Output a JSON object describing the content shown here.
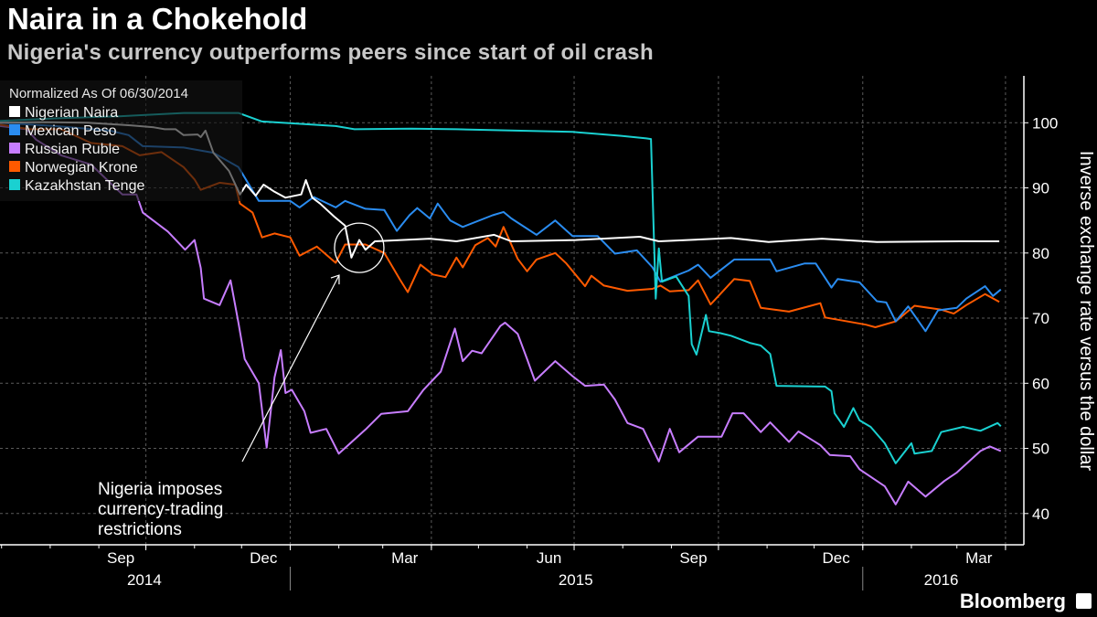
{
  "header": {
    "title": "Naira in a Chokehold",
    "subtitle": "Nigeria's currency outperforms peers since start of oil crash"
  },
  "logo": "Bloomberg",
  "chart_data": {
    "type": "line",
    "title": "Naira in a Chokehold",
    "subtitle": "Nigeria's currency outperforms peers since start of oil crash",
    "ylabel": "Inverse exchange rate versus the dollar",
    "xlabel": "",
    "x_unit": "days since 2014-06-30",
    "start_date": "2014-06-30",
    "ylim": [
      35.2,
      107.2
    ],
    "xlim": [
      0,
      652
    ],
    "yticks": [
      40,
      50,
      60,
      70,
      80,
      90,
      100
    ],
    "grid": true,
    "legend_title": "Normalized As Of 06/30/2014",
    "legend_position": "top-left",
    "month_ticks": [
      {
        "label": "Sep",
        "day": 77
      },
      {
        "label": "Dec",
        "day": 168
      },
      {
        "label": "Mar",
        "day": 258
      },
      {
        "label": "Jun",
        "day": 350
      },
      {
        "label": "Sep",
        "day": 442
      },
      {
        "label": "Dec",
        "day": 533
      },
      {
        "label": "Mar",
        "day": 624
      }
    ],
    "quarter_gridlines_days": [
      93,
      185,
      275,
      366,
      458,
      550,
      641
    ],
    "year_labels": [
      {
        "label": "2014",
        "day": 92
      },
      {
        "label": "2015",
        "day": 367
      },
      {
        "label": "2016",
        "day": 600
      }
    ],
    "year_separators_days": [
      185,
      550
    ],
    "annotation": {
      "text": [
        "Nigeria imposes",
        "currency-trading",
        "restrictions"
      ],
      "day": 229,
      "value": 80.8
    },
    "series": [
      {
        "name": "Nigerian Naira",
        "color": "#ffffff",
        "points": [
          [
            0,
            100
          ],
          [
            28,
            100.1
          ],
          [
            56,
            100
          ],
          [
            84,
            99.6
          ],
          [
            98,
            99.3
          ],
          [
            105,
            99
          ],
          [
            112,
            99
          ],
          [
            117,
            98.1
          ],
          [
            126,
            98.2
          ],
          [
            128,
            97.8
          ],
          [
            131,
            98.8
          ],
          [
            136,
            95.4
          ],
          [
            146,
            92.6
          ],
          [
            153,
            89
          ],
          [
            157,
            90.5
          ],
          [
            163,
            88.8
          ],
          [
            168,
            90.5
          ],
          [
            175,
            89.4
          ],
          [
            182,
            88.5
          ],
          [
            192,
            89
          ],
          [
            195,
            91.2
          ],
          [
            199,
            88.5
          ],
          [
            204,
            87.6
          ],
          [
            213,
            85.6
          ],
          [
            220,
            84.2
          ],
          [
            224,
            79.3
          ],
          [
            229,
            82
          ],
          [
            233,
            80.5
          ],
          [
            239,
            81.8
          ],
          [
            274,
            82.2
          ],
          [
            291,
            81.8
          ],
          [
            315,
            82.8
          ],
          [
            326,
            81.8
          ],
          [
            367,
            82
          ],
          [
            408,
            82.5
          ],
          [
            420,
            81.8
          ],
          [
            466,
            82.3
          ],
          [
            490,
            81.7
          ],
          [
            524,
            82.2
          ],
          [
            559,
            81.7
          ],
          [
            612,
            81.8
          ],
          [
            637,
            81.8
          ]
        ]
      },
      {
        "name": "Mexican Peso",
        "color": "#2a8cf0",
        "points": [
          [
            0,
            100
          ],
          [
            35,
            99.5
          ],
          [
            70,
            98.8
          ],
          [
            82,
            98.1
          ],
          [
            91,
            96.4
          ],
          [
            117,
            96.2
          ],
          [
            136,
            95.4
          ],
          [
            152,
            93.2
          ],
          [
            165,
            88
          ],
          [
            185,
            88
          ],
          [
            191,
            87
          ],
          [
            200,
            88.6
          ],
          [
            214,
            87
          ],
          [
            220,
            88
          ],
          [
            233,
            86.8
          ],
          [
            245,
            86.6
          ],
          [
            253,
            83.4
          ],
          [
            261,
            85.8
          ],
          [
            266,
            86.9
          ],
          [
            274,
            85.3
          ],
          [
            279,
            87.6
          ],
          [
            287,
            85
          ],
          [
            295,
            84
          ],
          [
            314,
            85.8
          ],
          [
            321,
            86.3
          ],
          [
            326,
            85.3
          ],
          [
            342,
            82.8
          ],
          [
            354,
            85
          ],
          [
            365,
            82.6
          ],
          [
            381,
            82.6
          ],
          [
            392,
            79.9
          ],
          [
            406,
            80.4
          ],
          [
            416,
            77.8
          ],
          [
            421,
            75.6
          ],
          [
            439,
            77.3
          ],
          [
            445,
            78.2
          ],
          [
            453,
            76.2
          ],
          [
            468,
            79
          ],
          [
            491,
            79
          ],
          [
            495,
            77.2
          ],
          [
            513,
            78.4
          ],
          [
            520,
            78.4
          ],
          [
            530,
            74.7
          ],
          [
            534,
            76
          ],
          [
            548,
            75.5
          ],
          [
            559,
            72.6
          ],
          [
            565,
            72.4
          ],
          [
            571,
            69.5
          ],
          [
            579,
            71.8
          ],
          [
            590,
            68
          ],
          [
            598,
            71.2
          ],
          [
            610,
            71.6
          ],
          [
            616,
            73
          ],
          [
            628,
            74.9
          ],
          [
            633,
            73.4
          ],
          [
            638,
            74.4
          ]
        ]
      },
      {
        "name": "Russian Ruble",
        "color": "#c77dff",
        "points": [
          [
            0,
            99.5
          ],
          [
            17,
            99
          ],
          [
            23,
            97.4
          ],
          [
            39,
            95
          ],
          [
            58,
            93.6
          ],
          [
            78,
            89
          ],
          [
            87,
            89
          ],
          [
            91,
            86.2
          ],
          [
            107,
            83.3
          ],
          [
            118,
            80.5
          ],
          [
            124,
            82
          ],
          [
            128,
            77.7
          ],
          [
            130,
            73
          ],
          [
            140,
            72
          ],
          [
            147,
            75.8
          ],
          [
            152,
            69.3
          ],
          [
            156,
            63.7
          ],
          [
            165,
            60
          ],
          [
            170,
            50.1
          ],
          [
            175,
            60.9
          ],
          [
            179,
            65.1
          ],
          [
            182,
            58.5
          ],
          [
            186,
            59
          ],
          [
            194,
            55.7
          ],
          [
            198,
            52.4
          ],
          [
            208,
            53
          ],
          [
            216,
            49.2
          ],
          [
            233,
            52.9
          ],
          [
            243,
            55.3
          ],
          [
            260,
            55.7
          ],
          [
            270,
            59
          ],
          [
            281,
            61.8
          ],
          [
            290,
            68.4
          ],
          [
            295,
            63.4
          ],
          [
            301,
            65
          ],
          [
            307,
            64.6
          ],
          [
            319,
            68.8
          ],
          [
            322,
            69.3
          ],
          [
            330,
            67.6
          ],
          [
            336,
            63.7
          ],
          [
            341,
            60.4
          ],
          [
            354,
            63.4
          ],
          [
            365,
            61.1
          ],
          [
            373,
            59.6
          ],
          [
            385,
            59.8
          ],
          [
            392,
            57.5
          ],
          [
            400,
            53.9
          ],
          [
            410,
            53
          ],
          [
            420,
            48
          ],
          [
            427,
            53
          ],
          [
            433,
            49.4
          ],
          [
            445,
            51.8
          ],
          [
            460,
            51.8
          ],
          [
            467,
            55.4
          ],
          [
            474,
            55.4
          ],
          [
            485,
            52.5
          ],
          [
            491,
            54
          ],
          [
            503,
            51
          ],
          [
            509,
            52.6
          ],
          [
            523,
            50.5
          ],
          [
            529,
            49
          ],
          [
            542,
            48.8
          ],
          [
            548,
            46.8
          ],
          [
            564,
            44.2
          ],
          [
            571,
            41.4
          ],
          [
            579,
            44.9
          ],
          [
            590,
            42.6
          ],
          [
            602,
            45
          ],
          [
            610,
            46.3
          ],
          [
            625,
            49.6
          ],
          [
            631,
            50.3
          ],
          [
            638,
            49.6
          ]
        ]
      },
      {
        "name": "Norwegian Krone",
        "color": "#ff5a00",
        "points": [
          [
            0,
            99.7
          ],
          [
            19,
            99
          ],
          [
            39,
            99
          ],
          [
            58,
            96.9
          ],
          [
            78,
            96.4
          ],
          [
            89,
            95
          ],
          [
            103,
            95.5
          ],
          [
            117,
            93.2
          ],
          [
            124,
            91.3
          ],
          [
            128,
            89.7
          ],
          [
            140,
            90.8
          ],
          [
            150,
            90.5
          ],
          [
            153,
            87.6
          ],
          [
            161,
            86.2
          ],
          [
            167,
            82.4
          ],
          [
            175,
            83
          ],
          [
            185,
            82.4
          ],
          [
            191,
            79.6
          ],
          [
            202,
            81
          ],
          [
            214,
            78.5
          ],
          [
            220,
            81.3
          ],
          [
            233,
            81.3
          ],
          [
            245,
            80
          ],
          [
            255,
            75.9
          ],
          [
            260,
            74
          ],
          [
            268,
            78.2
          ],
          [
            276,
            76.7
          ],
          [
            284,
            76.3
          ],
          [
            291,
            79.3
          ],
          [
            295,
            77.8
          ],
          [
            303,
            81.2
          ],
          [
            311,
            82.3
          ],
          [
            316,
            81
          ],
          [
            321,
            84
          ],
          [
            330,
            79.1
          ],
          [
            336,
            77.2
          ],
          [
            342,
            79
          ],
          [
            354,
            80
          ],
          [
            361,
            78.4
          ],
          [
            373,
            74.9
          ],
          [
            377,
            76.5
          ],
          [
            385,
            75
          ],
          [
            400,
            74.2
          ],
          [
            416,
            74.5
          ],
          [
            421,
            75
          ],
          [
            427,
            74.1
          ],
          [
            439,
            74.3
          ],
          [
            445,
            75.8
          ],
          [
            453,
            72.1
          ],
          [
            468,
            76
          ],
          [
            478,
            75.7
          ],
          [
            485,
            71.6
          ],
          [
            503,
            71
          ],
          [
            523,
            72.3
          ],
          [
            526,
            70.1
          ],
          [
            552,
            69
          ],
          [
            558,
            68.6
          ],
          [
            571,
            69.5
          ],
          [
            583,
            71.9
          ],
          [
            600,
            71.3
          ],
          [
            608,
            70.7
          ],
          [
            616,
            72
          ],
          [
            628,
            73.7
          ],
          [
            637,
            72.5
          ]
        ]
      },
      {
        "name": "Kazakhstan Tenge",
        "color": "#1ad1d1",
        "points": [
          [
            0,
            100.3
          ],
          [
            39,
            100.7
          ],
          [
            76,
            101
          ],
          [
            117,
            101.5
          ],
          [
            152,
            101.5
          ],
          [
            167,
            100.2
          ],
          [
            214,
            99.5
          ],
          [
            226,
            99
          ],
          [
            262,
            99.1
          ],
          [
            291,
            99
          ],
          [
            365,
            98.6
          ],
          [
            396,
            98
          ],
          [
            412,
            97.6
          ],
          [
            415,
            97.5
          ],
          [
            418,
            73
          ],
          [
            420,
            80.7
          ],
          [
            422,
            75.6
          ],
          [
            431,
            76.4
          ],
          [
            439,
            73.4
          ],
          [
            441,
            66
          ],
          [
            444,
            64.4
          ],
          [
            450,
            70.5
          ],
          [
            452,
            68
          ],
          [
            459,
            67.7
          ],
          [
            466,
            67.3
          ],
          [
            478,
            66.2
          ],
          [
            485,
            65.8
          ],
          [
            491,
            64.5
          ],
          [
            495,
            59.6
          ],
          [
            526,
            59.5
          ],
          [
            530,
            58.8
          ],
          [
            532,
            55.4
          ],
          [
            538,
            53.3
          ],
          [
            544,
            56.2
          ],
          [
            548,
            54.3
          ],
          [
            555,
            53.3
          ],
          [
            564,
            50.8
          ],
          [
            571,
            47.7
          ],
          [
            581,
            50.8
          ],
          [
            583,
            49.2
          ],
          [
            594,
            49.6
          ],
          [
            600,
            52.5
          ],
          [
            614,
            53.3
          ],
          [
            625,
            52.7
          ],
          [
            636,
            53.9
          ],
          [
            638,
            53.4
          ]
        ]
      }
    ]
  }
}
